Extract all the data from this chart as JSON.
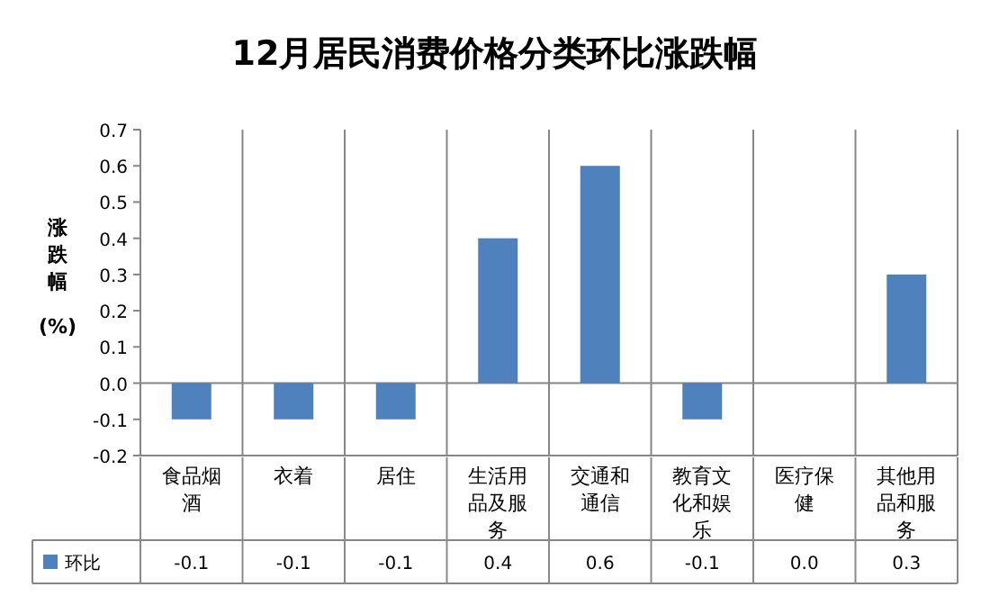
{
  "chart_data": {
    "type": "bar",
    "title": "12月居民消费价格分类环比涨跌幅",
    "ylabel": "涨跌幅(%)",
    "categories": [
      "食品烟酒",
      "衣着",
      "居住",
      "生活用品及服务",
      "交通和通信",
      "教育文化和娱乐",
      "医疗保健",
      "其他用品和服务"
    ],
    "series": [
      {
        "name": "环比",
        "color": "#4f81bd",
        "values": [
          -0.1,
          -0.1,
          -0.1,
          0.4,
          0.6,
          -0.1,
          0.0,
          0.3
        ],
        "value_labels": [
          "-0.1",
          "-0.1",
          "-0.1",
          "0.4",
          "0.6",
          "-0.1",
          "0.0",
          "0.3"
        ]
      }
    ],
    "ylim": [
      -0.2,
      0.7
    ],
    "yticks": [
      {
        "value": -0.2,
        "label": "-0.2"
      },
      -0.1,
      {
        "value": 0,
        "label": "0.0"
      },
      0.1,
      0.2,
      0.3,
      0.4,
      0.5,
      0.6,
      0.7
    ],
    "legend": "bottom left"
  }
}
